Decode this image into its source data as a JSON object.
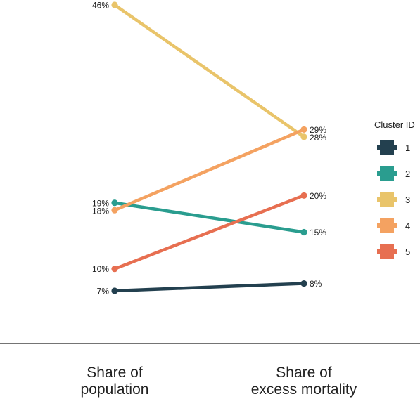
{
  "chart_data": {
    "type": "line",
    "categories": [
      "Share of\npopulation",
      "Share of\nexcess mortality"
    ],
    "series": [
      {
        "name": "1",
        "color": "#23404f",
        "values": [
          7,
          8
        ]
      },
      {
        "name": "2",
        "color": "#2a9d8f",
        "values": [
          19,
          15
        ]
      },
      {
        "name": "3",
        "color": "#e9c46a",
        "values": [
          46,
          28
        ]
      },
      {
        "name": "4",
        "color": "#f4a261",
        "values": [
          18,
          29
        ]
      },
      {
        "name": "5",
        "color": "#e76f51",
        "values": [
          10,
          20
        ]
      }
    ],
    "value_suffix": "%",
    "ylim": [
      7,
      46
    ],
    "legend": {
      "title": "Cluster ID",
      "position": "right"
    },
    "grid": false
  }
}
